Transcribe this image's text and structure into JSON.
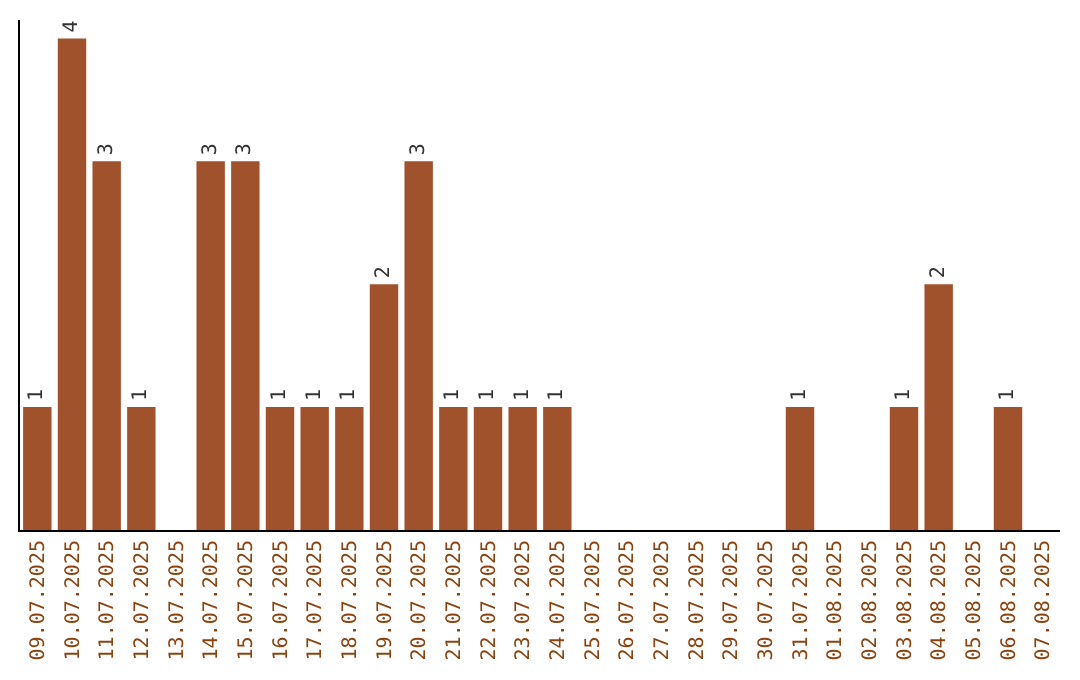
{
  "chart_data": {
    "type": "bar",
    "categories": [
      "09.07.2025",
      "10.07.2025",
      "11.07.2025",
      "12.07.2025",
      "13.07.2025",
      "14.07.2025",
      "15.07.2025",
      "16.07.2025",
      "17.07.2025",
      "18.07.2025",
      "19.07.2025",
      "20.07.2025",
      "21.07.2025",
      "22.07.2025",
      "23.07.2025",
      "24.07.2025",
      "25.07.2025",
      "26.07.2025",
      "27.07.2025",
      "28.07.2025",
      "29.07.2025",
      "30.07.2025",
      "31.07.2025",
      "01.08.2025",
      "02.08.2025",
      "03.08.2025",
      "04.08.2025",
      "05.08.2025",
      "06.08.2025",
      "07.08.2025"
    ],
    "values": [
      1,
      4,
      3,
      1,
      0,
      3,
      3,
      1,
      1,
      1,
      2,
      3,
      1,
      1,
      1,
      1,
      0,
      0,
      0,
      0,
      0,
      0,
      1,
      0,
      0,
      1,
      2,
      0,
      1,
      0
    ],
    "value_labels": [
      "1",
      "4",
      "3",
      "1",
      null,
      "3",
      "3",
      "1",
      "1",
      "1",
      "2",
      "3",
      "1",
      "1",
      "1",
      "1",
      null,
      null,
      null,
      null,
      null,
      null,
      "1",
      null,
      null,
      "1",
      "2",
      null,
      "1",
      null
    ],
    "color": "#a0522d",
    "ylim": [
      0,
      4.15
    ],
    "tick_labels": "x"
  }
}
